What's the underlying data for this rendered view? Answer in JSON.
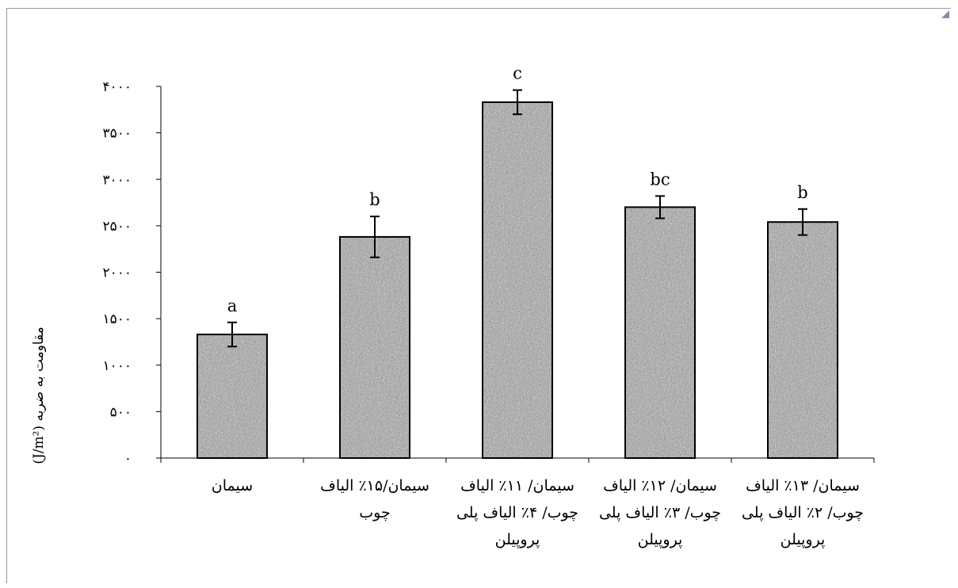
{
  "chart_data": {
    "type": "bar",
    "title": "",
    "xlabel": "",
    "ylabel": "مقاومت به ضربه (J/m²)",
    "ylim": [
      0,
      4000
    ],
    "yticks": [
      0,
      500,
      1000,
      1500,
      2000,
      2500,
      3000,
      3500,
      4000
    ],
    "ytick_labels": [
      "۰",
      "۵۰۰",
      "۱۰۰۰",
      "۱۵۰۰",
      "۲۰۰۰",
      "۲۵۰۰",
      "۳۰۰۰",
      "۳۵۰۰",
      "۴۰۰۰"
    ],
    "categories": [
      [
        "سیمان"
      ],
      [
        "سیمان/۱۵٪ الیاف",
        "چوب"
      ],
      [
        "سیمان/ ۱۱٪ الیاف",
        "چوب/ ۴٪ الیاف پلی",
        "پروپیلن"
      ],
      [
        "سیمان/ ۱۲٪ الیاف",
        "چوب/ ۳٪ الیاف پلی",
        "پروپیلن"
      ],
      [
        "سیمان/ ۱۳٪ الیاف",
        "چوب/ ۲٪ الیاف پلی",
        "پروپیلن"
      ]
    ],
    "values": [
      1330,
      2380,
      3830,
      2700,
      2540
    ],
    "errors": [
      130,
      220,
      130,
      120,
      140
    ],
    "group_labels": [
      "a",
      "b",
      "c",
      "bc",
      "b"
    ],
    "grid": false,
    "legend": "none"
  },
  "colors": {
    "bar_fill": "#9b9b9b",
    "bar_stroke": "#000000"
  }
}
